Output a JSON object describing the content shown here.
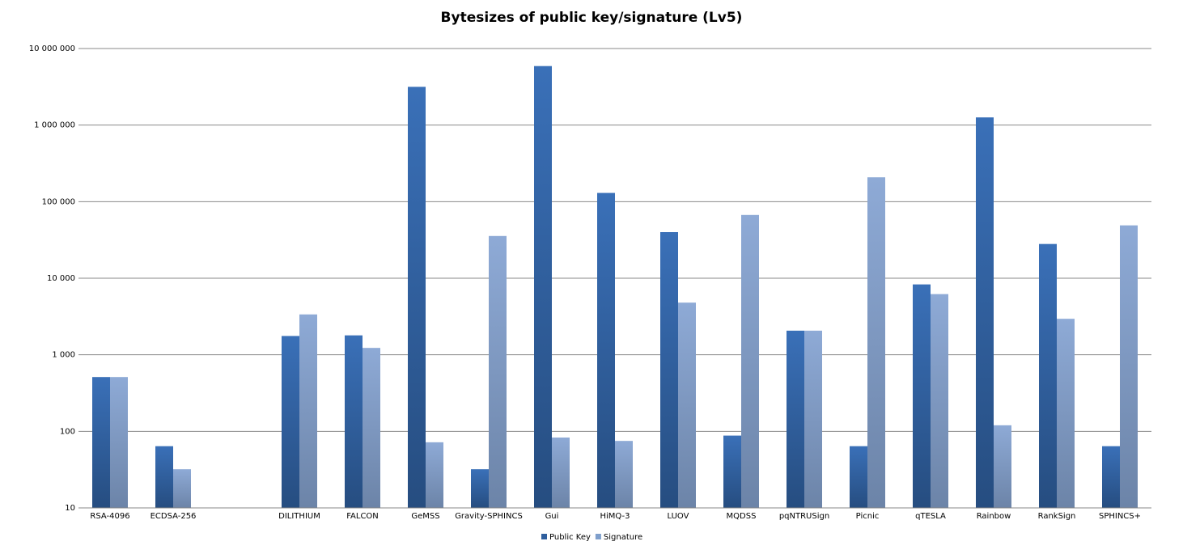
{
  "chart_data": {
    "type": "bar",
    "title": "Bytesizes of public key/signature (Lv5)",
    "xlabel": "",
    "ylabel": "",
    "yscale": "log",
    "ylim": [
      10,
      10000000
    ],
    "yticks": [
      "10",
      "100",
      "1 000",
      "10 000",
      "100 000",
      "1 000 000",
      "10 000 000"
    ],
    "grid": true,
    "legend_position": "bottom",
    "categories": [
      "RSA-4096",
      "ECDSA-256",
      "",
      "DILITHIUM",
      "FALCON",
      "GeMSS",
      "Gravity-SPHINCS",
      "Gui",
      "HiMQ-3",
      "LUOV",
      "MQDSS",
      "pqNTRUSign",
      "Picnic",
      "qTESLA",
      "Rainbow",
      "RankSign",
      "SPHINCS+"
    ],
    "series": [
      {
        "name": "Public Key",
        "color": "#2f5f9e",
        "values": [
          512,
          64,
          null,
          1760,
          1793,
          3160000,
          32,
          5900000,
          130000,
          40000,
          88,
          2065,
          64,
          8300,
          1260000,
          28000,
          64
        ]
      },
      {
        "name": "Signature",
        "color": "#7f9fcc",
        "values": [
          512,
          32,
          null,
          3366,
          1230,
          72,
          35600,
          83,
          75,
          4800,
          67000,
          2065,
          208000,
          6200,
          120,
          2950,
          49000
        ]
      }
    ]
  }
}
